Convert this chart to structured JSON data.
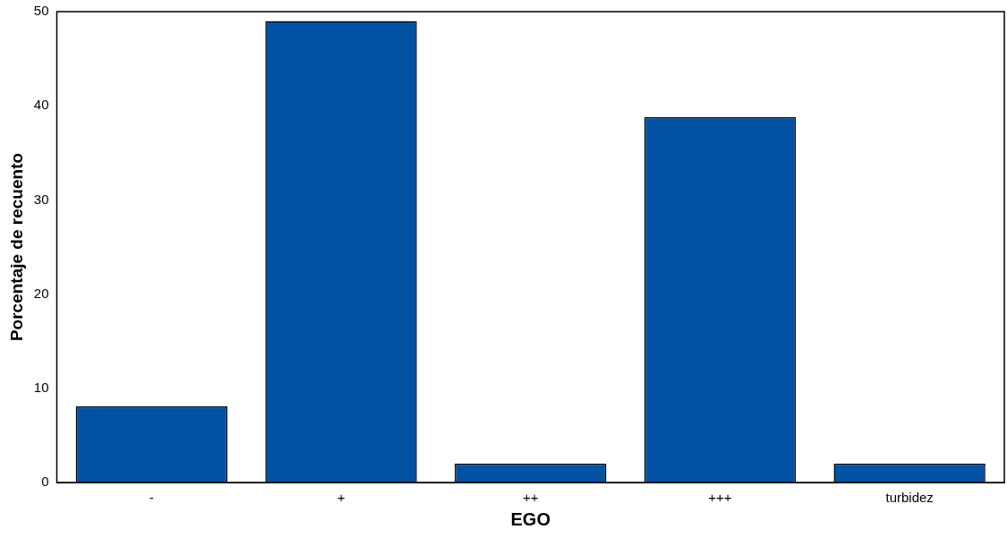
{
  "chart_data": {
    "type": "bar",
    "xlabel": "EGO",
    "ylabel": "Porcentaje de recuento",
    "categories": [
      "-",
      "+",
      "++",
      "+++",
      "turbidez"
    ],
    "values": [
      8.1,
      49.0,
      2.0,
      38.8,
      2.0
    ],
    "color": "#0252a4",
    "ylim": [
      0,
      50
    ],
    "yticks": [
      0,
      10,
      20,
      30,
      40,
      50
    ],
    "grid": false,
    "legend": false
  }
}
